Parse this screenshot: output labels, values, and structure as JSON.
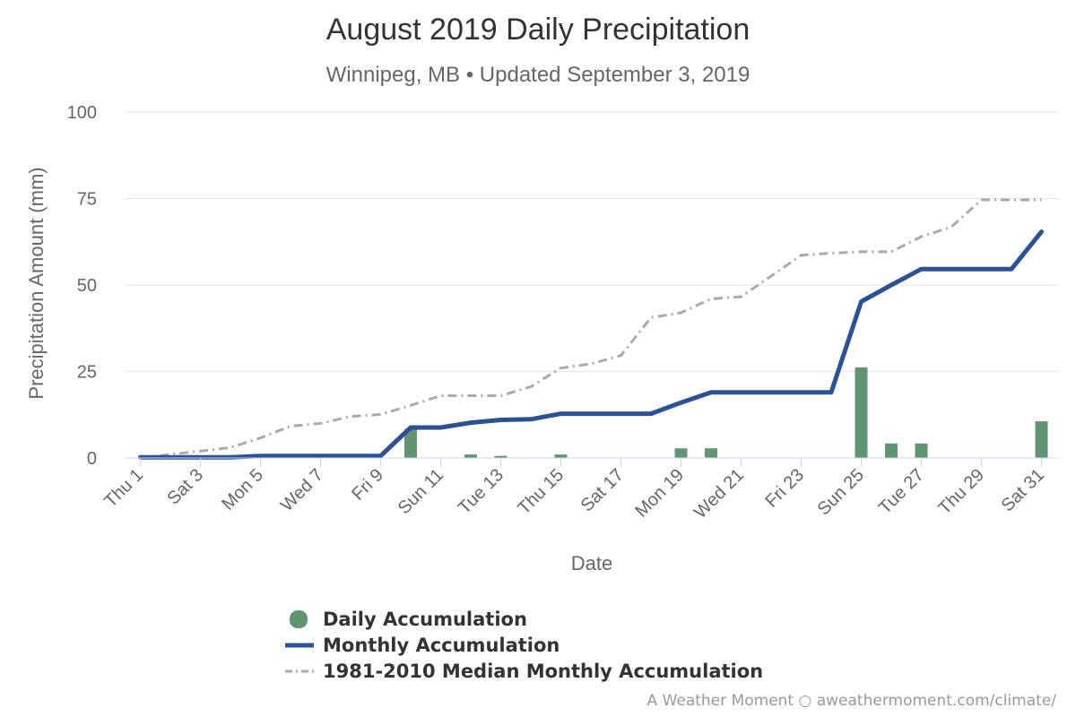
{
  "title": "August 2019 Daily Precipitation",
  "subtitle": "Winnipeg, MB • Updated September 3, 2019",
  "credit": "A Weather Moment ○ aweathermoment.com/climate/",
  "colors": {
    "daily": "#5f9570",
    "monthly": "#2b5197",
    "median": "#aaaaaa"
  },
  "chart_data": {
    "type": "bar+line",
    "title": "August 2019 Daily Precipitation",
    "subtitle": "Winnipeg, MB • Updated September 3, 2019",
    "xlabel": "Date",
    "ylabel": "Precipitation Amount (mm)",
    "ylim": [
      0,
      100
    ],
    "yticks": [
      0,
      25,
      50,
      75,
      100
    ],
    "grid": true,
    "legend_position": "bottom",
    "x": [
      1,
      2,
      3,
      4,
      5,
      6,
      7,
      8,
      9,
      10,
      11,
      12,
      13,
      14,
      15,
      16,
      17,
      18,
      19,
      20,
      21,
      22,
      23,
      24,
      25,
      26,
      27,
      28,
      29,
      30,
      31
    ],
    "xtick_labels": [
      {
        "day": 1,
        "label": "Thu 1"
      },
      {
        "day": 3,
        "label": "Sat 3"
      },
      {
        "day": 5,
        "label": "Mon 5"
      },
      {
        "day": 7,
        "label": "Wed 7"
      },
      {
        "day": 9,
        "label": "Fri 9"
      },
      {
        "day": 11,
        "label": "Sun 11"
      },
      {
        "day": 13,
        "label": "Tue 13"
      },
      {
        "day": 15,
        "label": "Thu 15"
      },
      {
        "day": 17,
        "label": "Sat 17"
      },
      {
        "day": 19,
        "label": "Mon 19"
      },
      {
        "day": 21,
        "label": "Wed 21"
      },
      {
        "day": 23,
        "label": "Fri 23"
      },
      {
        "day": 25,
        "label": "Sun 25"
      },
      {
        "day": 27,
        "label": "Tue 27"
      },
      {
        "day": 29,
        "label": "Thu 29"
      },
      {
        "day": 31,
        "label": "Sat 31"
      }
    ],
    "series": [
      {
        "name": "Daily Accumulation",
        "type": "bar",
        "values": [
          0,
          0,
          0,
          0,
          0,
          0,
          0,
          0,
          0,
          8.4,
          0,
          1.0,
          0.6,
          0,
          1.0,
          0,
          0,
          0,
          2.8,
          2.8,
          0,
          0,
          0,
          0,
          26.2,
          4.2,
          4.2,
          0,
          0,
          0,
          10.6
        ]
      },
      {
        "name": "Monthly Accumulation",
        "type": "line",
        "values": [
          0.2,
          0.2,
          0.2,
          0.2,
          0.6,
          0.6,
          0.6,
          0.6,
          0.6,
          8.8,
          8.8,
          10.2,
          11.0,
          11.2,
          12.8,
          12.8,
          12.8,
          12.8,
          16.0,
          19.0,
          19.0,
          19.0,
          19.0,
          19.0,
          45.2,
          50.0,
          54.6,
          54.6,
          54.6,
          54.6,
          65.4
        ]
      },
      {
        "name": "1981-2010 Median Monthly Accumulation",
        "type": "line",
        "values": [
          0,
          1.0,
          2.0,
          3.0,
          5.8,
          9.2,
          10.0,
          12.0,
          12.6,
          15.2,
          18.0,
          18.0,
          18.0,
          20.6,
          26.0,
          27.2,
          29.6,
          40.6,
          42.0,
          46.0,
          46.6,
          52.6,
          58.6,
          59.2,
          59.6,
          59.6,
          64.0,
          66.8,
          74.6,
          74.6,
          74.6
        ]
      }
    ]
  },
  "legend": [
    {
      "label": "Daily Accumulation",
      "icon": "circle-icon"
    },
    {
      "label": "Monthly Accumulation",
      "icon": "solid-line-icon"
    },
    {
      "label": "1981-2010 Median Monthly Accumulation",
      "icon": "dash-dot-line-icon"
    }
  ]
}
